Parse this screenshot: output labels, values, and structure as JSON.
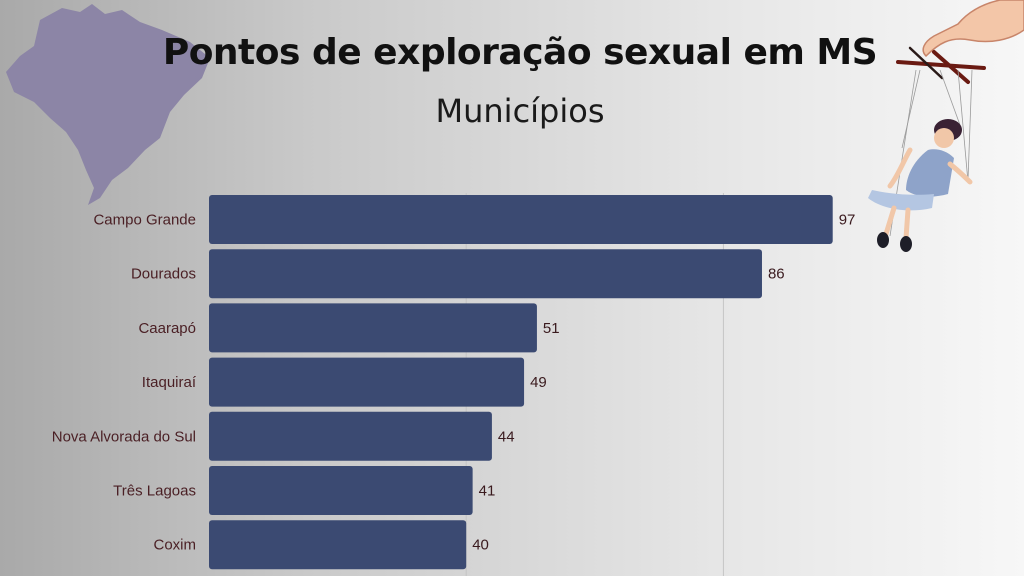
{
  "header": {
    "title": "Pontos de exploração sexual em MS",
    "subtitle": "Municípios"
  },
  "colors": {
    "bar": "#3b4a72",
    "category_text": "#4a1f24",
    "value_text": "#3a1a1e",
    "map": "#8c85a6"
  },
  "decorations": {
    "map_icon": "brazil-map-icon",
    "illustration_icon": "puppet-girl-on-strings-icon"
  },
  "chart_data": {
    "type": "bar",
    "orientation": "horizontal",
    "categories": [
      "Campo Grande",
      "Dourados",
      "Caarapó",
      "Itaquiraí",
      "Nova Alvorada do Sul",
      "Três Lagoas",
      "Coxim"
    ],
    "values": [
      97,
      86,
      51,
      49,
      44,
      41,
      40
    ],
    "title": "Pontos de exploração sexual em MS",
    "subtitle": "Municípios",
    "xlim": [
      0,
      100
    ],
    "grid": true,
    "data_labels": true
  }
}
